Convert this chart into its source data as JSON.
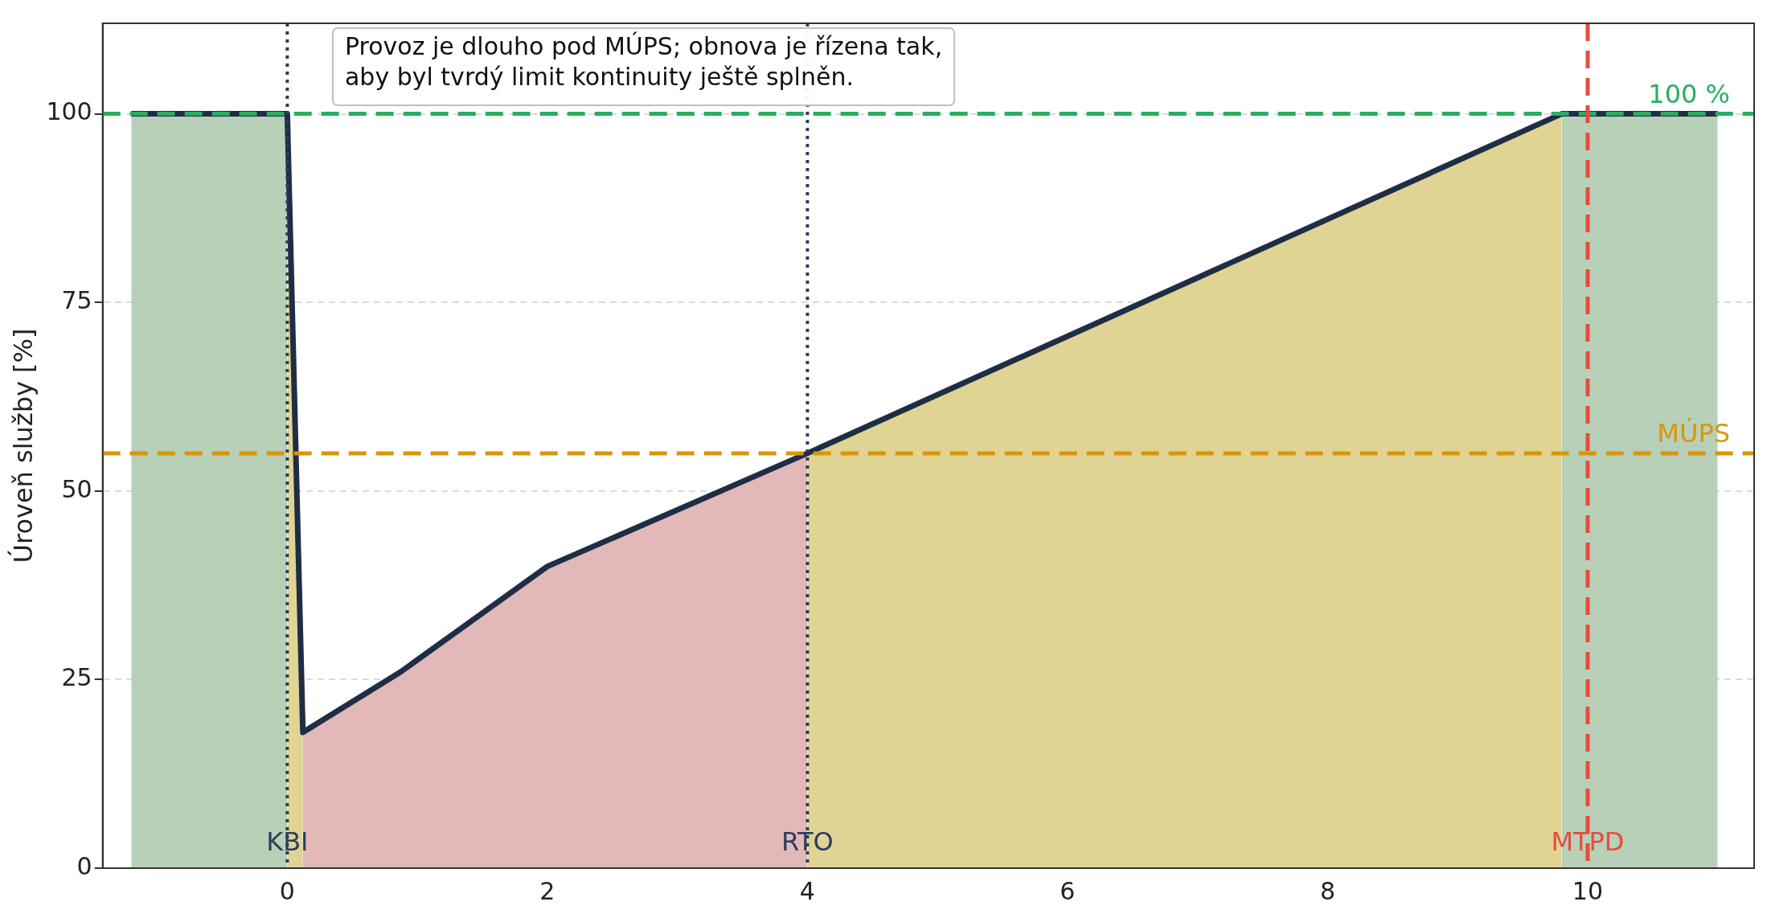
{
  "chart_data": {
    "type": "line",
    "ylabel": "Úroveň služby [%]",
    "xlim": [
      -1.42,
      11.28
    ],
    "xticks": [
      0,
      2,
      4,
      6,
      8,
      10
    ],
    "ylim": [
      0,
      112
    ],
    "yticks": [
      0,
      25,
      50,
      75,
      100
    ],
    "grid": "y",
    "series": [
      {
        "type": "area",
        "color": "#b8d0b8",
        "x": [
          -1.2,
          0
        ],
        "values": [
          100,
          100
        ]
      },
      {
        "type": "area",
        "color": "#e0d494",
        "x": [
          0,
          0.12
        ],
        "values": [
          100,
          18
        ]
      },
      {
        "type": "area",
        "color": "#e2b8b8",
        "x": [
          0.12,
          0.87,
          2,
          4
        ],
        "values": [
          18,
          26,
          40,
          55
        ]
      },
      {
        "type": "area",
        "color": "#e0d494",
        "x": [
          4,
          9.8
        ],
        "values": [
          55,
          100
        ]
      },
      {
        "type": "area",
        "color": "#b8d0b8",
        "x": [
          9.8,
          11
        ],
        "values": [
          100,
          100
        ]
      },
      {
        "color": "#1f2d45",
        "x": [
          -1.2,
          0,
          0.12,
          0.87,
          2,
          4,
          9.8,
          11
        ],
        "values": [
          100,
          100,
          18,
          26,
          40,
          55,
          100,
          100
        ]
      }
    ],
    "ref_lines": [
      {
        "axis": "y",
        "value": 100,
        "label": "100 %",
        "color": "#27ae60",
        "line_style": "dashed"
      },
      {
        "axis": "y",
        "value": 55,
        "label": "MÚPS",
        "color": "#d9960b",
        "line_style": "dashed"
      },
      {
        "axis": "x",
        "value": 0,
        "label": "KBI",
        "color": "#2c3e60",
        "line_style": "dotted"
      },
      {
        "axis": "x",
        "value": 4,
        "label": "RTO",
        "color": "#2c3e60",
        "line_style": "dotted"
      },
      {
        "axis": "x",
        "value": 10,
        "label": "MTPD",
        "color": "#e74c3c",
        "line_style": "dashed"
      }
    ],
    "annotations": [
      "Provoz je dlouho pod MÚPS; obnova je řízena tak,\naby byl tvrdý limit kontinuity ještě splněn."
    ],
    "legend": false
  }
}
